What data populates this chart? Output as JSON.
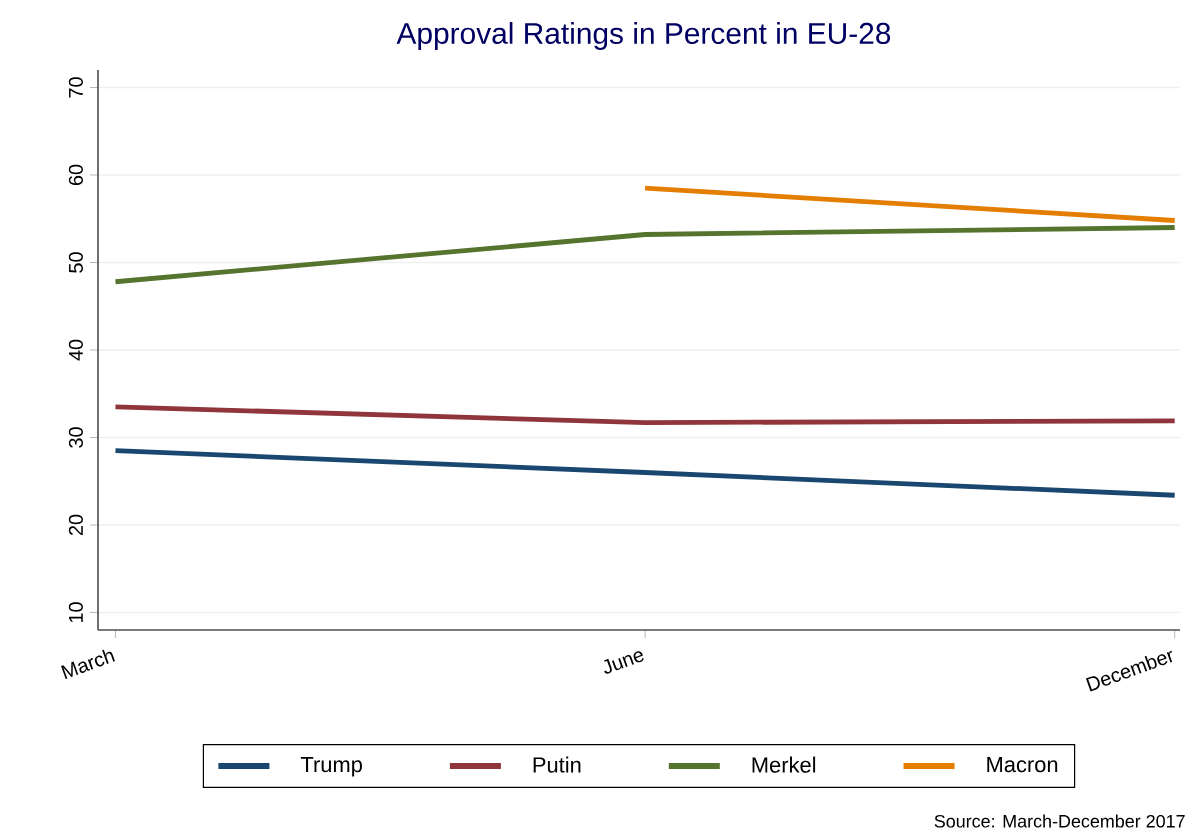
{
  "chart_data": {
    "type": "line",
    "title": "Approval Ratings in Percent in EU-28",
    "categories": [
      "March",
      "June",
      "December"
    ],
    "series": [
      {
        "name": "Trump",
        "color": "#1a476f",
        "values": [
          28.5,
          26.0,
          23.4
        ]
      },
      {
        "name": "Putin",
        "color": "#90353b",
        "values": [
          33.5,
          31.7,
          31.9
        ]
      },
      {
        "name": "Merkel",
        "color": "#55752f",
        "values": [
          47.8,
          53.2,
          54.0
        ]
      },
      {
        "name": "Macron",
        "color": "#e37e00",
        "values": [
          null,
          58.5,
          54.8
        ]
      }
    ],
    "ylim": [
      8,
      72
    ],
    "yticks": [
      10,
      20,
      30,
      40,
      50,
      60,
      70
    ],
    "grid": "y",
    "legend": "bottom",
    "marker": "none",
    "line_style": "solid",
    "annotations": [
      "Source: March-December 2017"
    ]
  }
}
